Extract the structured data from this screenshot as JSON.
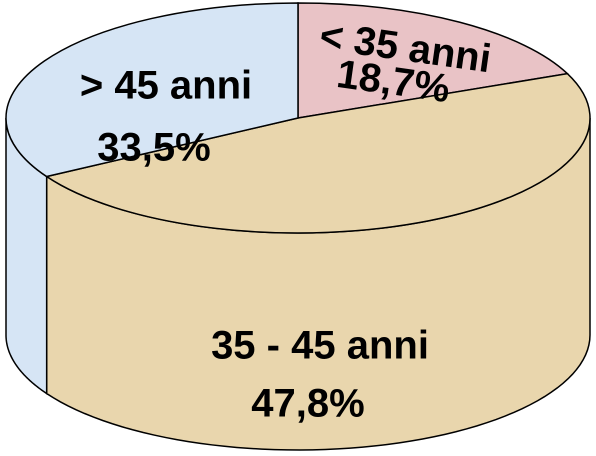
{
  "chart_data": {
    "type": "pie3d",
    "categories": [
      "< 35 anni",
      "35 - 45 anni",
      "> 45 anni"
    ],
    "values": [
      18.7,
      47.8,
      33.5
    ],
    "value_labels": [
      "18,7%",
      "47,8%",
      "33,5%"
    ],
    "colors": [
      "#e9c3c6",
      "#e9d6ad",
      "#d6e5f5"
    ]
  }
}
